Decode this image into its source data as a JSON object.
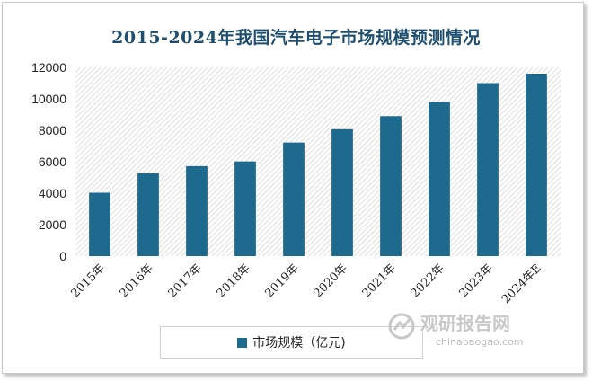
{
  "chart_data": {
    "type": "bar",
    "title": "2015-2024年我国汽车电子市场规模预测情况",
    "categories": [
      "2015年",
      "2016年",
      "2017年",
      "2018年",
      "2019年",
      "2020年",
      "2021年",
      "2022年",
      "2023年",
      "2024年E"
    ],
    "series": [
      {
        "name": "市场规模（亿元)",
        "values": [
          4030,
          5260,
          5720,
          6020,
          7220,
          8070,
          8900,
          9800,
          11000,
          11600
        ]
      }
    ],
    "ylim": [
      0,
      12000
    ],
    "yticks": [
      0,
      2000,
      4000,
      6000,
      8000,
      10000,
      12000
    ],
    "bar_color": "#1d6a8e",
    "plot_background": "diagonal-hatch",
    "legend_position": "bottom"
  },
  "watermark": {
    "text": "观研报告网",
    "url": "chinabaogao.com"
  }
}
